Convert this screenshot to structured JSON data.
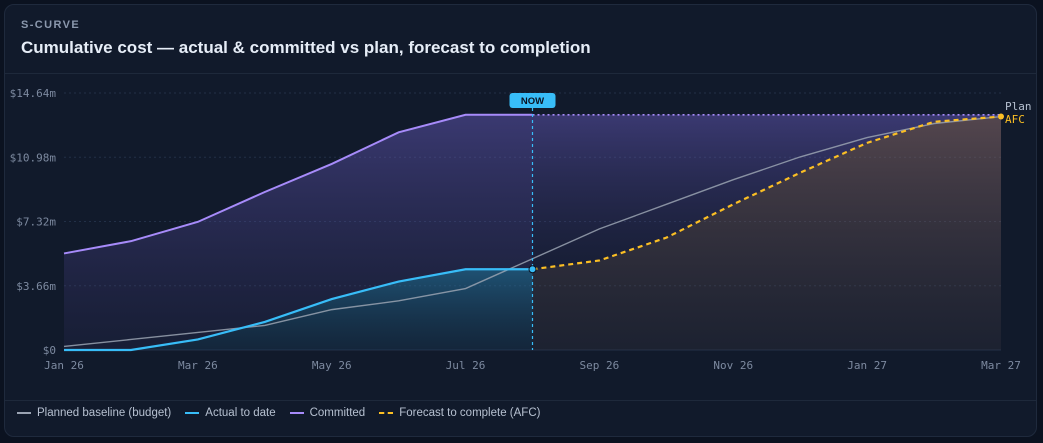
{
  "header": {
    "eyebrow": "S-CURVE",
    "title": "Cumulative cost — actual & committed vs plan, forecast to completion"
  },
  "colors": {
    "plan": "#9aa3b2",
    "actual": "#38bdf8",
    "committed": "#a78bfa",
    "afc": "#fbbf24",
    "now": "#38bdf8"
  },
  "chart_data": {
    "type": "line",
    "x": [
      "2026-01",
      "2026-02",
      "2026-03",
      "2026-04",
      "2026-05",
      "2026-06",
      "2026-07",
      "2026-08",
      "2026-09",
      "2026-10",
      "2026-11",
      "2026-12",
      "2027-01",
      "2027-02",
      "2027-03"
    ],
    "x_tick_labels": [
      "Jan 26",
      "Mar 26",
      "May 26",
      "Jul 26",
      "Sep 26",
      "Nov 26",
      "Jan 27",
      "Mar 27"
    ],
    "x_tick_positions": [
      "2026-01",
      "2026-03",
      "2026-05",
      "2026-07",
      "2026-09",
      "2026-11",
      "2027-01",
      "2027-03"
    ],
    "y_tick_labels": [
      "$0",
      "$3.66m",
      "$7.32m",
      "$10.98m",
      "$14.64m"
    ],
    "ylim": [
      0,
      14.64
    ],
    "y_unit": "$m",
    "now_label": "NOW",
    "now_x": "2026-08",
    "series": [
      {
        "key": "plan",
        "name": "Planned baseline (budget)",
        "end_label": "Plan",
        "x": [
          "2026-01",
          "2026-02",
          "2026-03",
          "2026-04",
          "2026-05",
          "2026-06",
          "2026-07",
          "2026-08",
          "2026-09",
          "2026-10",
          "2026-11",
          "2026-12",
          "2027-01",
          "2027-02",
          "2027-03"
        ],
        "values": [
          0.2,
          0.6,
          1.0,
          1.4,
          2.3,
          2.8,
          3.5,
          5.2,
          6.9,
          8.3,
          9.7,
          11.0,
          12.1,
          12.9,
          13.3
        ]
      },
      {
        "key": "actual",
        "name": "Actual to date",
        "x": [
          "2026-01",
          "2026-02",
          "2026-03",
          "2026-04",
          "2026-05",
          "2026-06",
          "2026-07",
          "2026-08"
        ],
        "values": [
          0.0,
          0.0,
          0.6,
          1.6,
          2.9,
          3.9,
          4.6,
          4.6
        ]
      },
      {
        "key": "committed",
        "name": "Committed",
        "x": [
          "2026-01",
          "2026-02",
          "2026-03",
          "2026-04",
          "2026-05",
          "2026-06",
          "2026-07",
          "2026-08",
          "2027-03"
        ],
        "values": [
          5.5,
          6.2,
          7.3,
          9.0,
          10.6,
          12.4,
          13.4,
          13.4,
          13.4
        ]
      },
      {
        "key": "afc",
        "name": "Forecast to complete (AFC)",
        "end_label": "AFC",
        "x": [
          "2026-08",
          "2026-09",
          "2026-10",
          "2026-11",
          "2026-12",
          "2027-01",
          "2027-02",
          "2027-03"
        ],
        "values": [
          4.6,
          5.1,
          6.4,
          8.3,
          10.1,
          11.8,
          13.0,
          13.3
        ]
      }
    ],
    "grid": true,
    "legend_position": "bottom-left"
  }
}
